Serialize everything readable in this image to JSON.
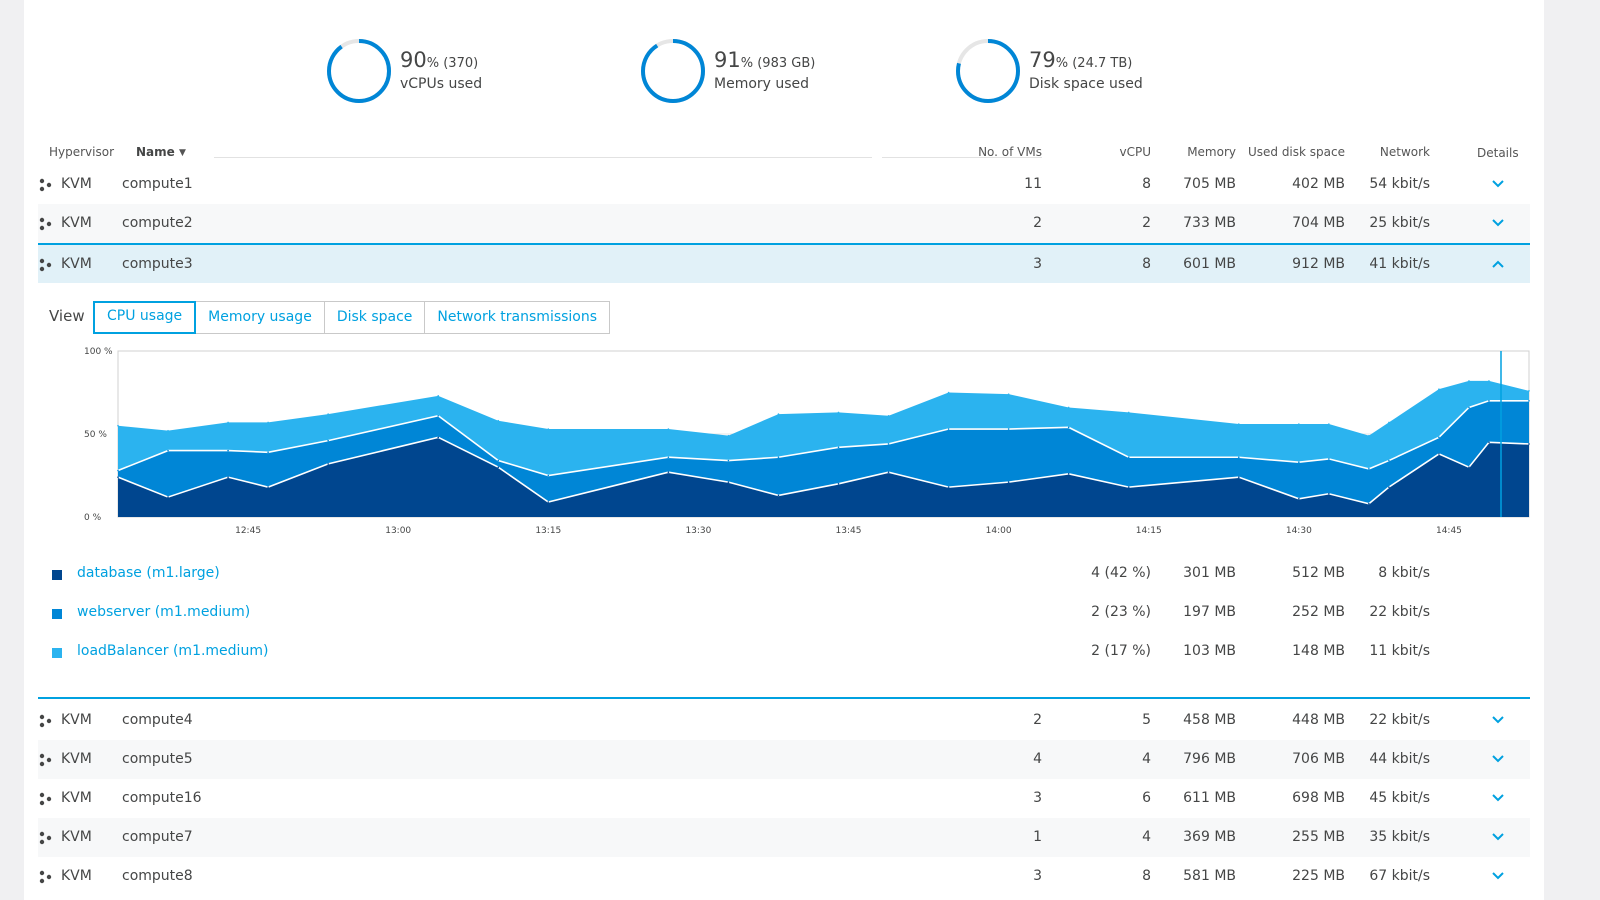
{
  "gauges": [
    {
      "big": "90",
      "pct": "%",
      "abs": " (370)",
      "label": "vCPUs used",
      "fraction": 0.9
    },
    {
      "big": "91",
      "pct": "%",
      "abs": " (983 GB)",
      "label": "Memory used",
      "fraction": 0.91
    },
    {
      "big": "79",
      "pct": "%",
      "abs": "  (24.7 TB)",
      "label": "Disk space used",
      "fraction": 0.79
    }
  ],
  "columns": {
    "hypervisor": "Hypervisor",
    "name": "Name",
    "sort_arrow": "▼",
    "vms": "No. of VMs",
    "vcpu": "vCPU",
    "memory": "Memory",
    "disk": "Used disk space",
    "network": "Network",
    "details": "Details"
  },
  "rows_top": [
    {
      "hv": "KVM",
      "name": "compute1",
      "vms": "11",
      "vcpu": "8",
      "mem": "705 MB",
      "disk": "402 MB",
      "net": "54 kbit/s"
    },
    {
      "hv": "KVM",
      "name": "compute2",
      "vms": "2",
      "vcpu": "2",
      "mem": "733 MB",
      "disk": "704 MB",
      "net": "25 kbit/s"
    },
    {
      "hv": "KVM",
      "name": "compute3",
      "vms": "3",
      "vcpu": "8",
      "mem": "601 MB",
      "disk": "912 MB",
      "net": "41 kbit/s"
    }
  ],
  "view": {
    "label": "View",
    "tabs": [
      "CPU usage",
      "Memory usage",
      "Disk space",
      "Network transmissions"
    ]
  },
  "chart_data": {
    "type": "area",
    "stacked": true,
    "y_ticks": [
      "100 %",
      "50 %",
      "0 %"
    ],
    "ylim": [
      0,
      100
    ],
    "x_ticks": [
      "12:45",
      "13:00",
      "13:15",
      "13:30",
      "13:45",
      "14:00",
      "14:15",
      "14:30",
      "14:45"
    ],
    "x": [
      "12:32",
      "12:37",
      "12:43",
      "12:47",
      "12:53",
      "13:04",
      "13:10",
      "13:15",
      "13:27",
      "13:33",
      "13:38",
      "13:44",
      "13:49",
      "13:55",
      "14:01",
      "14:07",
      "14:13",
      "14:24",
      "14:30",
      "14:33",
      "14:37",
      "14:39",
      "14:44",
      "14:47",
      "14:49",
      "14:53"
    ],
    "series": [
      {
        "name": "database (m1.large)",
        "color": "#00468f",
        "values": [
          24,
          12,
          24,
          18,
          32,
          48,
          30,
          9,
          27,
          21,
          13,
          20,
          27,
          18,
          21,
          26,
          18,
          24,
          11,
          14,
          8,
          18,
          38,
          30,
          45,
          44
        ]
      },
      {
        "name": "webserver (m1.medium)",
        "color": "#0086d6",
        "values": [
          4,
          28,
          16,
          21,
          14,
          13,
          4,
          16,
          9,
          13,
          23,
          22,
          17,
          35,
          32,
          28,
          18,
          12,
          22,
          21,
          21,
          16,
          10,
          36,
          25,
          26
        ]
      },
      {
        "name": "loadBalancer (m1.medium)",
        "color": "#2bb3ef",
        "values": [
          27,
          12,
          17,
          18,
          16,
          12,
          24,
          28,
          17,
          15,
          26,
          21,
          17,
          22,
          21,
          12,
          27,
          20,
          23,
          21,
          20,
          23,
          29,
          16,
          12,
          6
        ]
      }
    ]
  },
  "legend": [
    {
      "name": "database (m1.large)",
      "vcpu": "4 (42 %)",
      "mem": "301 MB",
      "disk": "512 MB",
      "net": "8 kbit/s",
      "color": "#00468f"
    },
    {
      "name": "webserver (m1.medium)",
      "vcpu": "2 (23 %)",
      "mem": "197 MB",
      "disk": "252 MB",
      "net": "22 kbit/s",
      "color": "#0086d6"
    },
    {
      "name": "loadBalancer (m1.medium)",
      "vcpu": "2 (17 %)",
      "mem": "103 MB",
      "disk": "148 MB",
      "net": "11 kbit/s",
      "color": "#2bb3ef"
    }
  ],
  "rows_bottom": [
    {
      "hv": "KVM",
      "name": "compute4",
      "vms": "2",
      "vcpu": "5",
      "mem": "458 MB",
      "disk": "448 MB",
      "net": "22 kbit/s"
    },
    {
      "hv": "KVM",
      "name": "compute5",
      "vms": "4",
      "vcpu": "4",
      "mem": "796 MB",
      "disk": "706 MB",
      "net": "44 kbit/s"
    },
    {
      "hv": "KVM",
      "name": "compute16",
      "vms": "3",
      "vcpu": "6",
      "mem": "611 MB",
      "disk": "698 MB",
      "net": "45 kbit/s"
    },
    {
      "hv": "KVM",
      "name": "compute7",
      "vms": "1",
      "vcpu": "4",
      "mem": "369 MB",
      "disk": "255 MB",
      "net": "35 kbit/s"
    },
    {
      "hv": "KVM",
      "name": "compute8",
      "vms": "3",
      "vcpu": "8",
      "mem": "581 MB",
      "disk": "225 MB",
      "net": "67 kbit/s"
    }
  ],
  "colors": {
    "accent": "#00a1e0",
    "gauge_bg": "#e6e6e6",
    "selected_row": "#e1f1f8"
  }
}
